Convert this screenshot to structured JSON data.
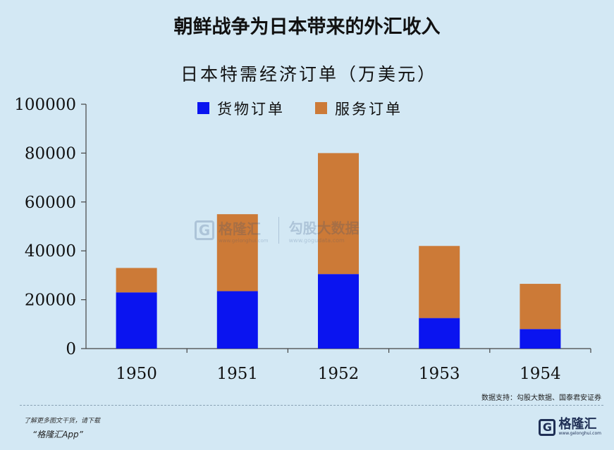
{
  "page": {
    "title": "朝鲜战争为日本带来的外汇收入",
    "source": "数据支持：勾股大数据、国泰君安证券",
    "footer_note": "了解更多图文干货，请下载",
    "footer_app": "“格隆汇App”",
    "footer_logo_name": "格隆汇",
    "footer_logo_url": "www.gelonghui.com",
    "watermark_name": "格隆汇",
    "watermark_sub": "www.gelonghui.com",
    "watermark_name2": "勾股大数据",
    "watermark_url2": "www.gogudata.com"
  },
  "colors": {
    "background": "#d3e8f4",
    "goods": "#0a14f0",
    "services": "#cc7a37"
  },
  "chart_data": {
    "type": "bar",
    "stacked": true,
    "title": "日本特需经济订单（万美元）",
    "categories": [
      "1950",
      "1951",
      "1952",
      "1953",
      "1954"
    ],
    "series": [
      {
        "name": "货物订单",
        "values": [
          23000,
          23500,
          30500,
          12500,
          8000
        ],
        "color": "#0a14f0"
      },
      {
        "name": "服务订单",
        "values": [
          10000,
          31500,
          49500,
          29500,
          18500
        ],
        "color": "#cc7a37"
      }
    ],
    "ylim": [
      0,
      100000
    ],
    "yticks": [
      "100000",
      "80000",
      "60000",
      "40000",
      "20000",
      "0"
    ],
    "ytick_values": [
      100000,
      80000,
      60000,
      40000,
      20000,
      0
    ],
    "xlabel": "",
    "ylabel": "",
    "legend": "top-center",
    "grid": false
  }
}
